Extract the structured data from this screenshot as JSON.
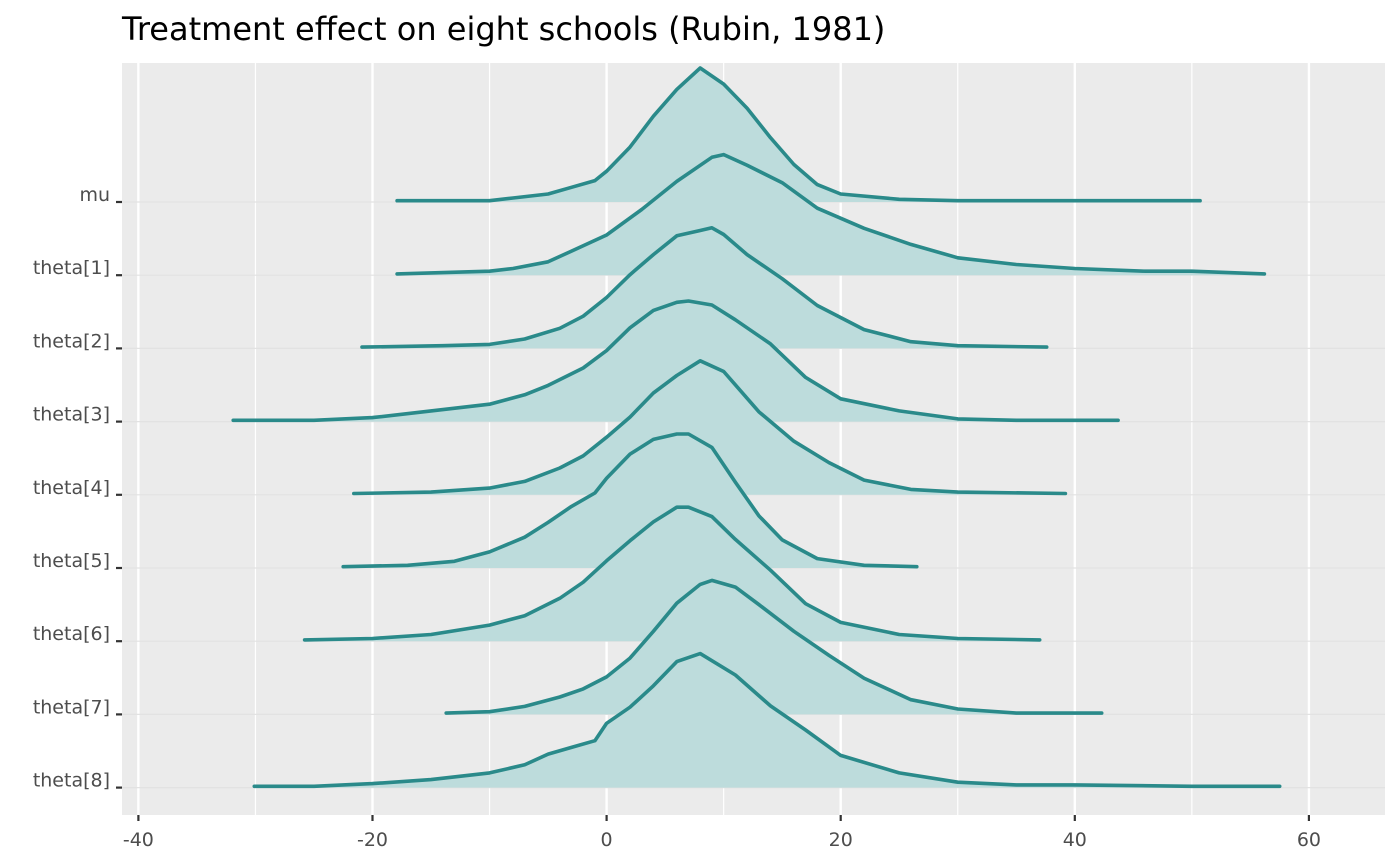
{
  "chart_data": {
    "type": "ridgeline",
    "title": "Treatment effect on eight schools (Rubin, 1981)",
    "xlabel": "",
    "ylabel": "",
    "xlim": [
      -41.4,
      66.5
    ],
    "x_ticks": [
      -40,
      -20,
      0,
      20,
      40,
      60
    ],
    "x_tick_labels": [
      "-40",
      "-20",
      "0",
      "20",
      "40",
      "60"
    ],
    "grid": true,
    "legend": "none",
    "colors": {
      "line": "#2a8a8a",
      "fill": "#bddcdc",
      "panel": "#ebebeb",
      "grid": "#ffffff"
    },
    "categories": [
      "mu",
      "theta[1]",
      "theta[2]",
      "theta[3]",
      "theta[4]",
      "theta[5]",
      "theta[6]",
      "theta[7]",
      "theta[8]"
    ],
    "series": [
      {
        "label": "mu",
        "x": [
          -17.9,
          -12,
          -10,
          -8,
          -5,
          -3,
          -1,
          0,
          2,
          4,
          6,
          8,
          10,
          12,
          14,
          16,
          18,
          20,
          25,
          30,
          40,
          50.7
        ],
        "density": [
          0.01,
          0.01,
          0.01,
          0.03,
          0.06,
          0.11,
          0.16,
          0.23,
          0.41,
          0.64,
          0.84,
          1.0,
          0.88,
          0.7,
          0.48,
          0.28,
          0.13,
          0.06,
          0.02,
          0.01,
          0.01,
          0.01
        ]
      },
      {
        "label": "theta[1]",
        "x": [
          -17.9,
          -10,
          -8,
          -5,
          -3,
          0,
          3,
          6,
          9,
          10,
          12,
          15,
          18,
          22,
          26,
          30,
          35,
          40,
          46,
          50,
          56.2
        ],
        "density": [
          0.01,
          0.03,
          0.05,
          0.1,
          0.18,
          0.3,
          0.49,
          0.7,
          0.88,
          0.9,
          0.82,
          0.69,
          0.5,
          0.35,
          0.23,
          0.13,
          0.08,
          0.05,
          0.03,
          0.03,
          0.01
        ]
      },
      {
        "label": "theta[2]",
        "x": [
          -20.9,
          -14,
          -10,
          -7,
          -4,
          -2,
          0,
          2,
          4,
          6,
          8,
          9,
          10,
          12,
          15,
          18,
          22,
          26,
          30,
          37.6
        ],
        "density": [
          0.01,
          0.02,
          0.03,
          0.07,
          0.15,
          0.24,
          0.38,
          0.55,
          0.7,
          0.84,
          0.88,
          0.9,
          0.85,
          0.7,
          0.52,
          0.32,
          0.14,
          0.05,
          0.02,
          0.01
        ]
      },
      {
        "label": "theta[3]",
        "x": [
          -31.9,
          -25,
          -20,
          -15,
          -10,
          -7,
          -5,
          -2,
          0,
          2,
          4,
          6,
          7,
          9,
          11,
          14,
          17,
          20,
          25,
          30,
          35,
          43.7
        ],
        "density": [
          0.01,
          0.01,
          0.03,
          0.08,
          0.13,
          0.2,
          0.27,
          0.4,
          0.53,
          0.7,
          0.83,
          0.89,
          0.9,
          0.87,
          0.76,
          0.58,
          0.33,
          0.17,
          0.08,
          0.02,
          0.01,
          0.01
        ]
      },
      {
        "label": "theta[4]",
        "x": [
          -21.6,
          -15,
          -10,
          -7,
          -4,
          -2,
          0,
          2,
          4,
          6,
          8,
          10,
          13,
          16,
          19,
          22,
          26,
          30,
          39.2
        ],
        "density": [
          0.01,
          0.02,
          0.05,
          0.1,
          0.2,
          0.29,
          0.43,
          0.58,
          0.76,
          0.89,
          1.0,
          0.92,
          0.62,
          0.4,
          0.24,
          0.11,
          0.04,
          0.02,
          0.01
        ]
      },
      {
        "label": "theta[5]",
        "x": [
          -22.5,
          -17,
          -13,
          -10,
          -7,
          -5,
          -3,
          -1,
          0,
          2,
          4,
          6,
          7,
          9,
          11,
          13,
          15,
          18,
          22,
          26.5
        ],
        "density": [
          0.01,
          0.02,
          0.05,
          0.12,
          0.23,
          0.34,
          0.46,
          0.56,
          0.67,
          0.85,
          0.96,
          1.0,
          1.0,
          0.9,
          0.64,
          0.39,
          0.21,
          0.07,
          0.02,
          0.01
        ]
      },
      {
        "label": "theta[6]",
        "x": [
          -25.8,
          -20,
          -15,
          -10,
          -7,
          -4,
          -2,
          0,
          2,
          4,
          6,
          7,
          9,
          11,
          14,
          17,
          20,
          25,
          30,
          37
        ],
        "density": [
          0.01,
          0.02,
          0.05,
          0.12,
          0.19,
          0.32,
          0.44,
          0.6,
          0.75,
          0.89,
          1.0,
          1.0,
          0.93,
          0.76,
          0.53,
          0.28,
          0.14,
          0.05,
          0.02,
          0.01
        ]
      },
      {
        "label": "theta[7]",
        "x": [
          -13.7,
          -10,
          -7,
          -4,
          -2,
          0,
          2,
          4,
          6,
          8,
          9,
          11,
          13,
          16,
          19,
          22,
          26,
          30,
          35,
          42.3
        ],
        "density": [
          0.01,
          0.02,
          0.06,
          0.13,
          0.19,
          0.28,
          0.42,
          0.62,
          0.83,
          0.97,
          1.0,
          0.95,
          0.82,
          0.62,
          0.44,
          0.27,
          0.11,
          0.04,
          0.01,
          0.01
        ]
      },
      {
        "label": "theta[8]",
        "x": [
          -30.1,
          -25,
          -20,
          -15,
          -10,
          -7,
          -5,
          -3,
          -1,
          0,
          2,
          4,
          6,
          8,
          11,
          14,
          17,
          20,
          25,
          30,
          35,
          40,
          50,
          57.5
        ],
        "density": [
          0.01,
          0.01,
          0.03,
          0.06,
          0.11,
          0.17,
          0.25,
          0.3,
          0.35,
          0.48,
          0.6,
          0.76,
          0.94,
          1.0,
          0.84,
          0.61,
          0.43,
          0.24,
          0.11,
          0.04,
          0.02,
          0.02,
          0.01,
          0.01
        ]
      }
    ]
  }
}
